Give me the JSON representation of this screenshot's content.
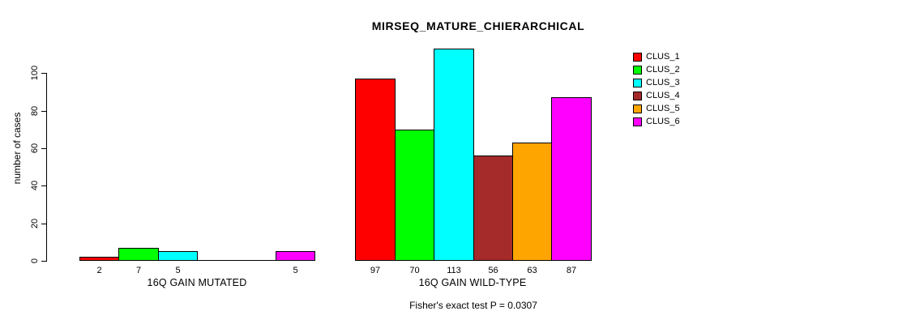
{
  "chart_data": {
    "type": "bar",
    "title": "MIRSEQ_MATURE_CHIERARCHICAL",
    "xlabel": "",
    "ylabel": "number of cases",
    "ylim": [
      0,
      113
    ],
    "yticks": [
      0,
      20,
      40,
      60,
      80,
      100
    ],
    "grid": false,
    "legend_position": "right",
    "series": [
      {
        "name": "CLUS_1",
        "color": "#FF0000"
      },
      {
        "name": "CLUS_2",
        "color": "#00FF00"
      },
      {
        "name": "CLUS_3",
        "color": "#00FFFF"
      },
      {
        "name": "CLUS_4",
        "color": "#A52A2A"
      },
      {
        "name": "CLUS_5",
        "color": "#FFA500"
      },
      {
        "name": "CLUS_6",
        "color": "#FF00FF"
      }
    ],
    "groups": [
      {
        "label": "16Q GAIN MUTATED",
        "values": [
          2,
          7,
          5,
          0,
          0,
          5
        ],
        "bar_labels": [
          "2",
          "7",
          "5",
          "",
          "",
          "5"
        ]
      },
      {
        "label": "16Q GAIN WILD-TYPE",
        "values": [
          97,
          70,
          113,
          56,
          63,
          87
        ],
        "bar_labels": [
          "97",
          "70",
          "113",
          "56",
          "63",
          "87"
        ]
      }
    ],
    "footnote": "Fisher's exact test P = 0.0307"
  }
}
